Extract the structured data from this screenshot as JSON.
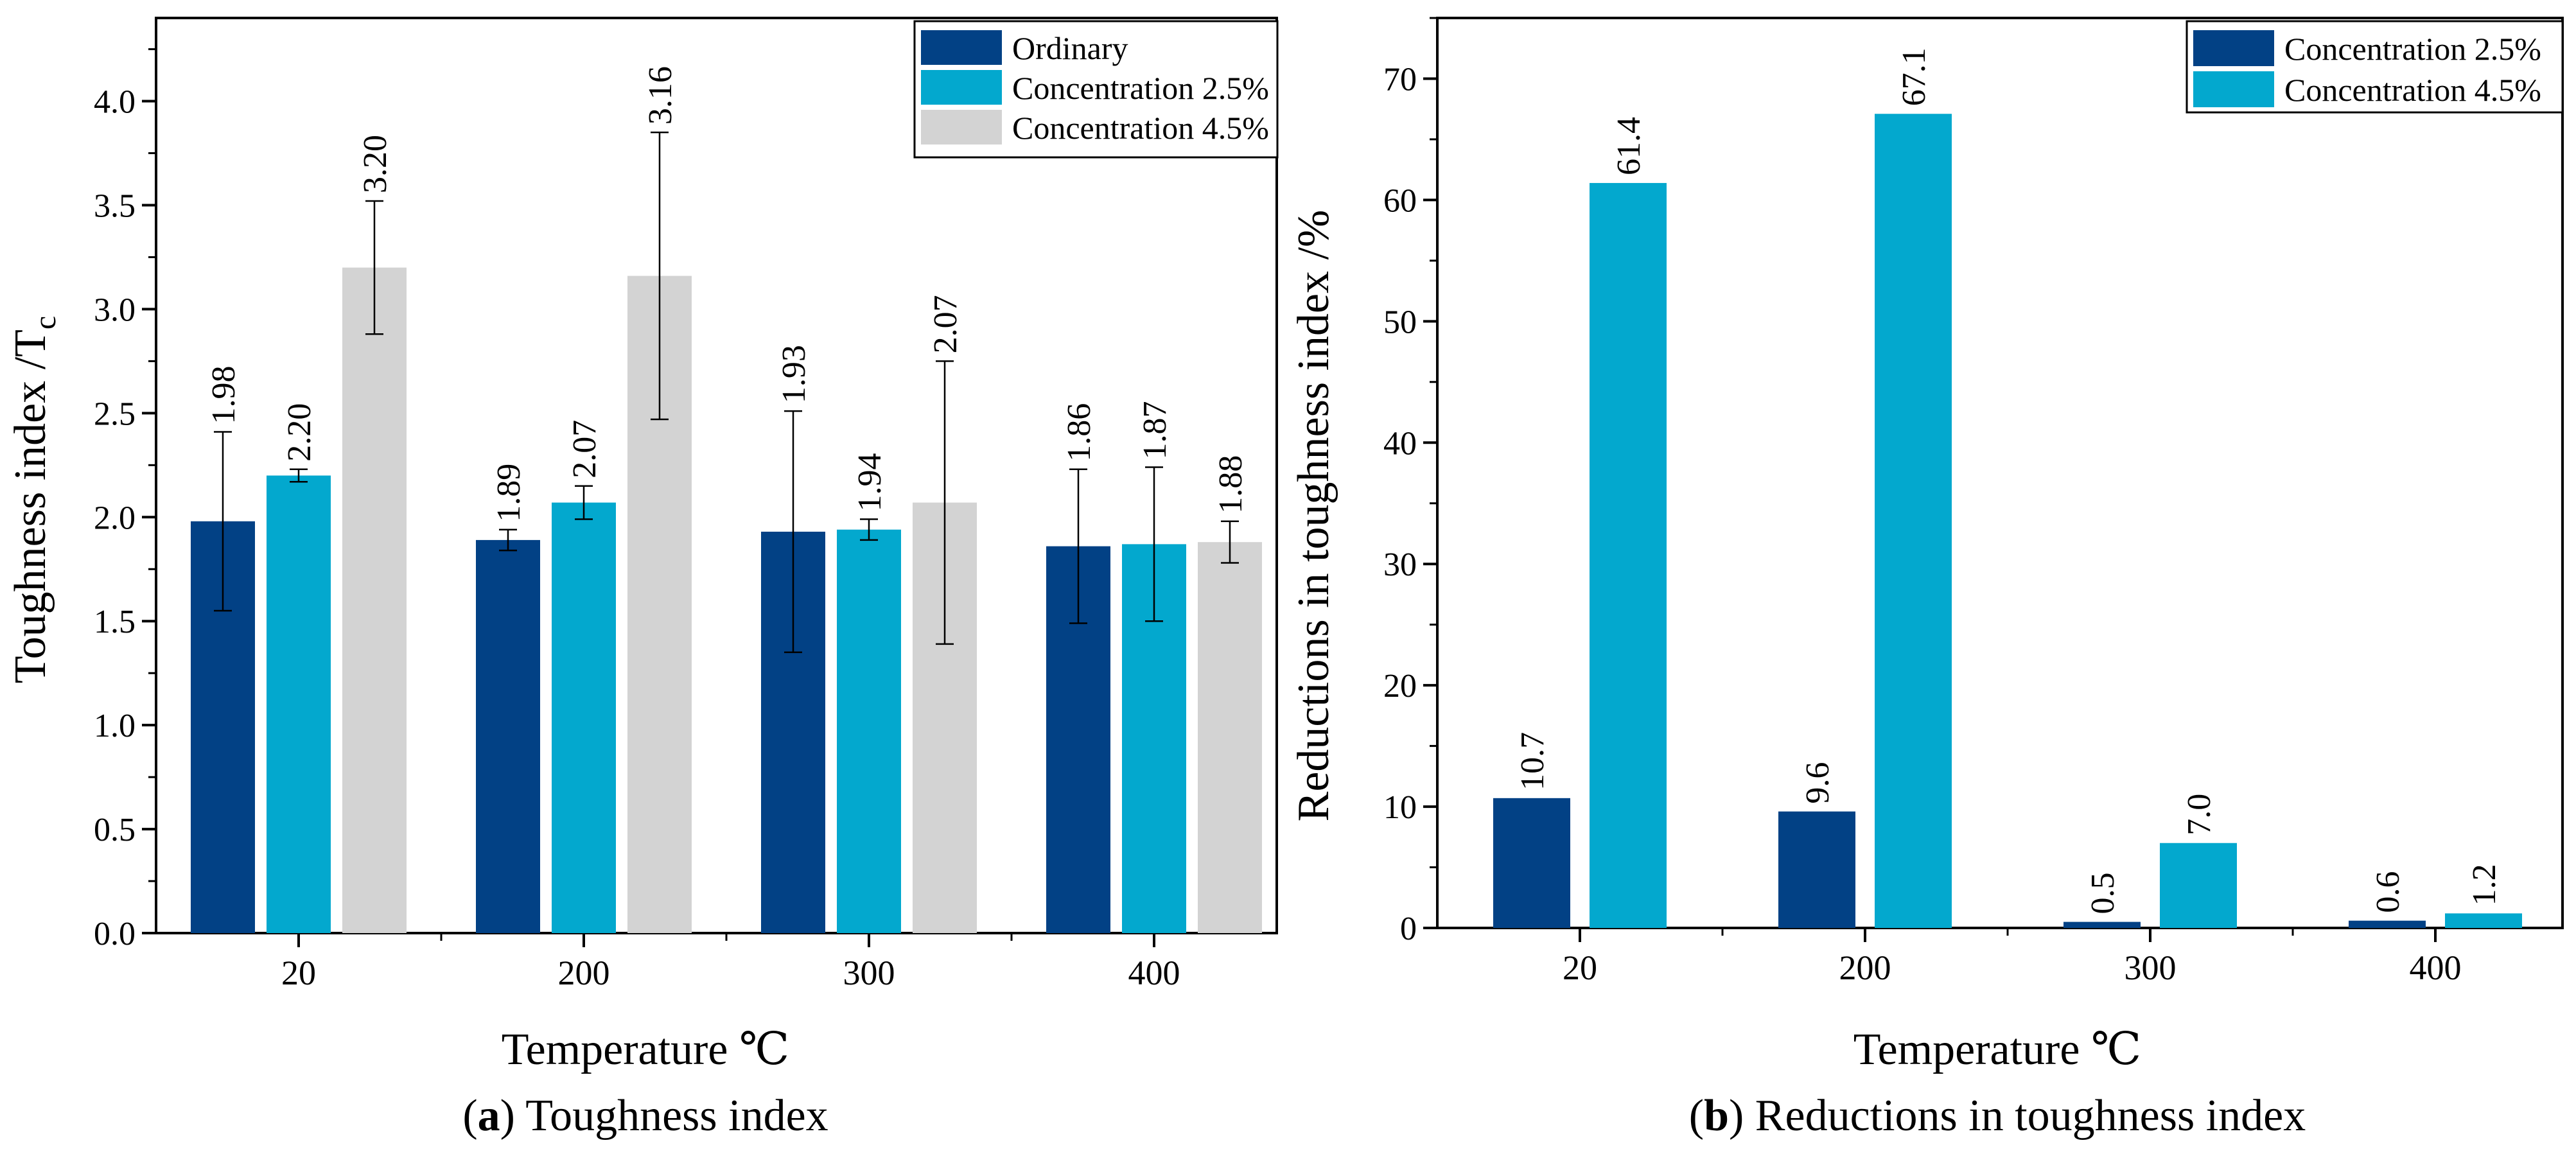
{
  "chart_data": [
    {
      "type": "bar",
      "caption_letter": "a",
      "caption_text": ") Toughness index",
      "ylabel_main": "Toughness index /T",
      "ylabel_sub": "c",
      "xlabel": "Temperature ℃",
      "categories": [
        "20",
        "200",
        "300",
        "400"
      ],
      "ylim": [
        0,
        4.4
      ],
      "yticks": [
        0.0,
        0.5,
        1.0,
        1.5,
        2.0,
        2.5,
        3.0,
        3.5,
        4.0
      ],
      "yminor": 0.25,
      "legend_position": "top-right",
      "series": [
        {
          "name": "Ordinary",
          "color": "#024185",
          "values": [
            1.98,
            1.89,
            1.93,
            1.86
          ],
          "labels": [
            "1.98",
            "1.89",
            "1.93",
            "1.86"
          ],
          "errors": [
            0.43,
            0.05,
            0.58,
            0.37
          ]
        },
        {
          "name": "Concentration 2.5%",
          "color": "#03A8CE",
          "values": [
            2.2,
            2.07,
            1.94,
            1.87
          ],
          "labels": [
            "2.20",
            "2.07",
            "1.94",
            "1.87"
          ],
          "errors": [
            0.03,
            0.08,
            0.05,
            0.37
          ]
        },
        {
          "name": "Concentration 4.5%",
          "color": "#D3D3D3",
          "values": [
            3.2,
            3.16,
            2.07,
            1.88
          ],
          "labels": [
            "3.20",
            "3.16",
            "2.07",
            "1.88"
          ],
          "errors": [
            0.32,
            0.69,
            0.68,
            0.1
          ]
        }
      ]
    },
    {
      "type": "bar",
      "caption_letter": "b",
      "caption_text": ") Reductions in toughness index",
      "ylabel_main": "Reductions in toughness index /%",
      "ylabel_sub": "",
      "xlabel": "Temperature ℃",
      "categories": [
        "20",
        "200",
        "300",
        "400"
      ],
      "ylim": [
        0,
        75
      ],
      "yticks": [
        0,
        10,
        20,
        30,
        40,
        50,
        60,
        70
      ],
      "yminor": 5,
      "legend_position": "top-right",
      "series": [
        {
          "name": "Concentration 2.5%",
          "color": "#024185",
          "values": [
            10.7,
            9.6,
            0.5,
            0.6
          ],
          "labels": [
            "10.7",
            "9.6",
            "0.5",
            "0.6"
          ]
        },
        {
          "name": "Concentration 4.5%",
          "color": "#03A8CE",
          "values": [
            61.4,
            67.1,
            7.0,
            1.2
          ],
          "labels": [
            "61.4",
            "67.1",
            "7.0",
            "1.2"
          ]
        }
      ]
    }
  ]
}
